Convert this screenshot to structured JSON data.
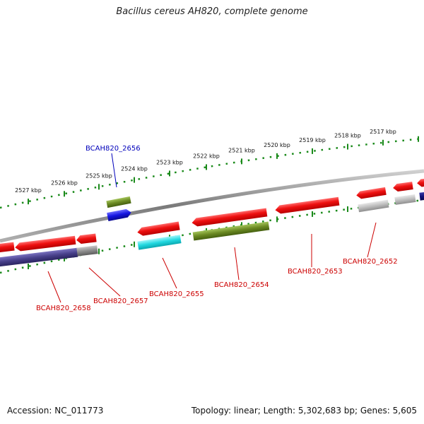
{
  "title": "Bacillus cereus AH820, complete genome",
  "footer": {
    "accession": "Accession: NC_011773",
    "summary": "Topology: linear; Length: 5,302,683 bp; Genes: 5,605"
  },
  "scale_labels": [
    "2527 kbp",
    "2526 kbp",
    "2525 kbp",
    "2524 kbp",
    "2523 kbp",
    "2522 kbp",
    "2521 kbp",
    "2520 kbp",
    "2519 kbp",
    "2518 kbp",
    "2517 kbp"
  ],
  "gene_labels": [
    "BCAH820_2656",
    "BCAH820_2658",
    "BCAH820_2657",
    "BCAH820_2655",
    "BCAH820_2654",
    "BCAH820_2653",
    "BCAH820_2652"
  ],
  "colors": {
    "backbone": "#8a8a8a",
    "tick": "#1a8a1a",
    "gene_red": "#e8191e",
    "olive": "#6b8a23",
    "blue": "#1515d8",
    "cyan": "#22d8e0",
    "navy": "#48408a",
    "gray": "#8c8c8c",
    "label_red": "#cc0000",
    "label_blue": "#0000bb"
  }
}
